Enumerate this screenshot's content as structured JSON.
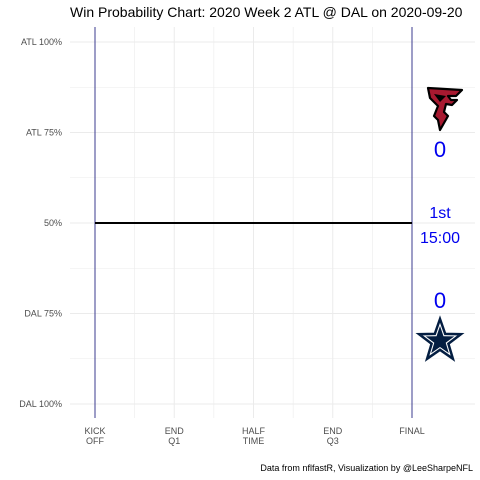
{
  "chart_data": {
    "type": "line",
    "title": "Win Probability Chart: 2020 Week 2 ATL @ DAL on 2020-09-20",
    "xlabel": "",
    "ylabel": "",
    "x_ticks": [
      "KICK\nOFF",
      "END\nQ1",
      "HALF\nTIME",
      "END\nQ3",
      "FINAL"
    ],
    "y_ticks": [
      "ATL 100%",
      "ATL 75%",
      "50%",
      "DAL 75%",
      "DAL 100%"
    ],
    "y_tick_values": [
      1.0,
      0.75,
      0.5,
      0.25,
      0.0
    ],
    "ylim": [
      0,
      1
    ],
    "game_periods": [
      0,
      1,
      2,
      3,
      4
    ],
    "series": [
      {
        "points": [
          [
            0,
            0.5
          ],
          [
            4,
            0.5
          ]
        ],
        "color": "#000000"
      }
    ],
    "vertical_lines": [
      0,
      4
    ],
    "vertical_line_color": "#3b3b8f",
    "grid": true,
    "annotations": {
      "away_score": "0",
      "home_score": "0",
      "period": "1st",
      "clock": "15:00",
      "away_logo": "atlanta-falcons-logo",
      "home_logo": "dallas-cowboys-star-logo"
    },
    "caption": "Data from nflfastR, Visualization by @LeeSharpeNFL"
  },
  "colors": {
    "accent_text": "#0000ee",
    "falcons_red": "#a71930",
    "falcons_black": "#000000",
    "cowboys_navy": "#041e42",
    "grid": "#ebebeb"
  }
}
